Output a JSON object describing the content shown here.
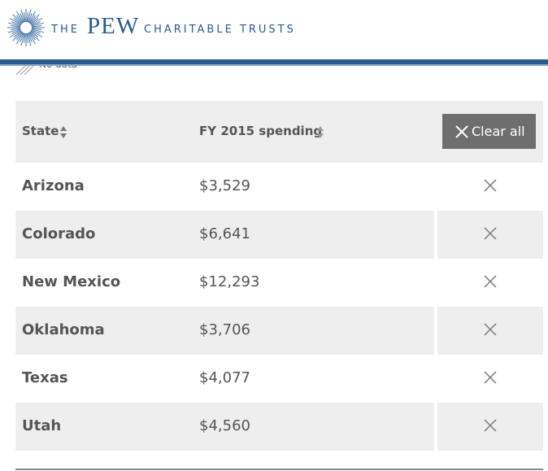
{
  "header": {
    "logo": {
      "the": "THE",
      "name": "PEW",
      "rest": "CHARITABLE TRUSTS"
    }
  },
  "legend": {
    "no_data": "No data"
  },
  "table": {
    "columns": [
      "State",
      "FY 2015 spending"
    ],
    "clear_all": "Clear all",
    "rows": [
      [
        "Arizona",
        "$3,529"
      ],
      [
        "Colorado",
        "$6,641"
      ],
      [
        "New Mexico",
        "$12,293"
      ],
      [
        "Oklahoma",
        "$3,706"
      ],
      [
        "Texas",
        "$4,077"
      ],
      [
        "Utah",
        "$4,560"
      ]
    ]
  }
}
